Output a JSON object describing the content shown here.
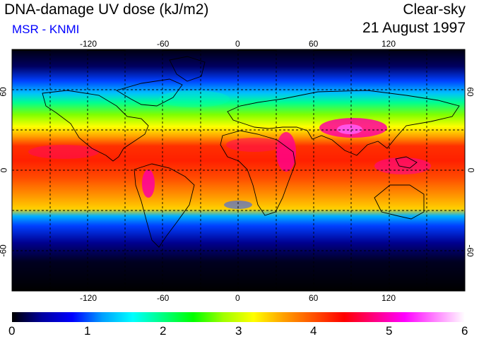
{
  "header": {
    "title": "DNA-damage UV dose (kJ/m2)",
    "credit": "MSR - KNMI",
    "product": "Clear-sky",
    "date": "21 August 1997"
  },
  "colors": {
    "credit": "#0000ff",
    "colorscale": [
      "#000000",
      "#0000a0",
      "#0000ff",
      "#00a0ff",
      "#00ffff",
      "#00ff80",
      "#00ff00",
      "#a0ff00",
      "#ffff00",
      "#ffa000",
      "#ff5000",
      "#ff0000",
      "#ff0080",
      "#ff00ff",
      "#ff80ff",
      "#ffffff"
    ]
  },
  "map": {
    "lon_ticks_top": [
      "-120",
      "-60",
      "0",
      "60",
      "120"
    ],
    "lon_ticks_bottom": [
      "-120",
      "-60",
      "0",
      "60",
      "120"
    ],
    "lat_ticks_left": [
      "60",
      "0",
      "-60"
    ],
    "lat_ticks_right": [
      "60",
      "0",
      "-60"
    ]
  },
  "colorbar": {
    "labels": [
      "0",
      "1",
      "2",
      "3",
      "4",
      "5",
      "6"
    ]
  }
}
